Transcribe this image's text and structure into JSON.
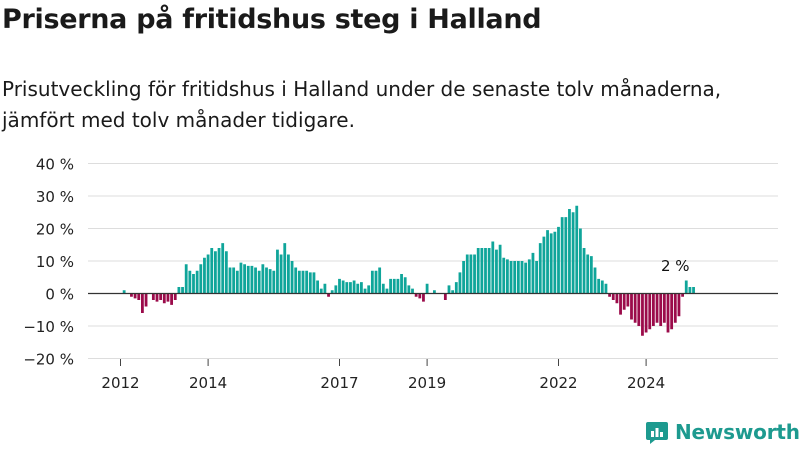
{
  "title": "Priserna på fritidshus steg i Halland",
  "subtitle": "Prisutveckling för fritidshus i Halland under de senaste tolv månaderna, jämfört med tolv månader tidigare.",
  "brand": "Newsworthy",
  "colors": {
    "positive": "#0fa59a",
    "negative": "#9b0b4a",
    "gridline": "#dddddd",
    "axis": "#333333",
    "brand": "#1d9a8f"
  },
  "chart_data": {
    "type": "bar",
    "y_ticks": [
      "40 %",
      "30 %",
      "20 %",
      "10 %",
      "0 %",
      "−10 %",
      "−20 %"
    ],
    "y_tick_values": [
      40,
      30,
      20,
      10,
      0,
      -10,
      -20
    ],
    "ylim": [
      -20,
      40
    ],
    "x_ticks": [
      {
        "label": "2012",
        "index": 0
      },
      {
        "label": "2014",
        "index": 24
      },
      {
        "label": "2017",
        "index": 60
      },
      {
        "label": "2019",
        "index": 84
      },
      {
        "label": "2022",
        "index": 120
      },
      {
        "label": "2024",
        "index": 144
      }
    ],
    "annotation": {
      "label": "2 %",
      "index": 155
    },
    "grid": true,
    "values": [
      0,
      1,
      0,
      -1,
      -1.5,
      -2,
      -6,
      -4,
      0,
      -2,
      -2.5,
      -2,
      -3,
      -2.5,
      -3.5,
      -2,
      2,
      2,
      9,
      7,
      6,
      7,
      9,
      11,
      12,
      14,
      13,
      14,
      15.5,
      13,
      8,
      8,
      7,
      9.5,
      9,
      8.5,
      8.5,
      8,
      7,
      9,
      8,
      7.5,
      7,
      13.5,
      12,
      15.5,
      12,
      10,
      8,
      7,
      7,
      7,
      6.5,
      6.5,
      4,
      1.5,
      3,
      -1,
      1,
      2.5,
      4.5,
      4,
      3.5,
      3.5,
      4,
      3,
      3.5,
      1.5,
      2.5,
      7,
      7,
      8,
      3,
      1.5,
      4.5,
      4.5,
      4.5,
      6,
      5,
      2.5,
      1.5,
      -1,
      -1.5,
      -2.5,
      3,
      0,
      1,
      0,
      0,
      -2,
      2.5,
      1,
      3.5,
      6.5,
      10,
      12,
      12,
      12,
      14,
      14,
      14,
      14,
      16,
      13.5,
      15,
      11,
      10.5,
      10,
      10,
      10,
      10,
      9.5,
      10.5,
      12.5,
      10,
      15.5,
      17.5,
      19.5,
      18.5,
      19,
      20.5,
      23.5,
      23.5,
      26,
      25,
      27,
      20,
      14,
      12,
      11.5,
      8,
      4.5,
      4,
      3,
      -1,
      -2,
      -3,
      -6.5,
      -5,
      -4,
      -8,
      -9,
      -10,
      -13,
      -12,
      -11,
      -10,
      -9,
      -10,
      -9,
      -12,
      -11,
      -9,
      -7,
      -1,
      4,
      2,
      2
    ]
  }
}
